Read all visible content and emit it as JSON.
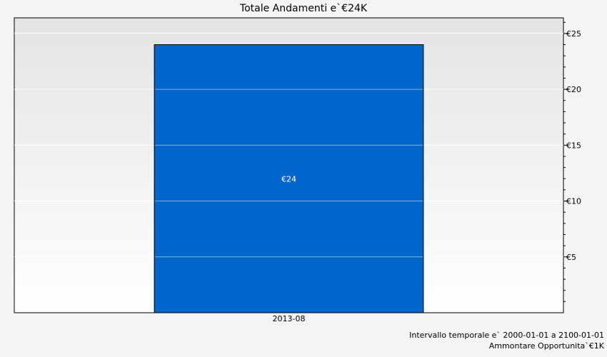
{
  "chart_data": {
    "type": "bar",
    "title": "Totale Andamenti e`€24K",
    "categories": [
      "2013-08"
    ],
    "values": [
      24
    ],
    "value_labels": [
      "€24"
    ],
    "ylim": [
      0,
      26.4
    ],
    "y_ticks": [
      5,
      10,
      15,
      20,
      25
    ],
    "y_tick_labels": [
      "€5",
      "€10",
      "€15",
      "€20",
      "€25"
    ],
    "y_axis_side": "right",
    "grid": true,
    "bar_color": "#0066cc",
    "xlabel": "",
    "ylabel": ""
  },
  "footnotes": {
    "range": "Intervallo temporale e` 2000-01-01 a 2100-01-01",
    "amount": "Ammontare Opportunita`€1K"
  }
}
